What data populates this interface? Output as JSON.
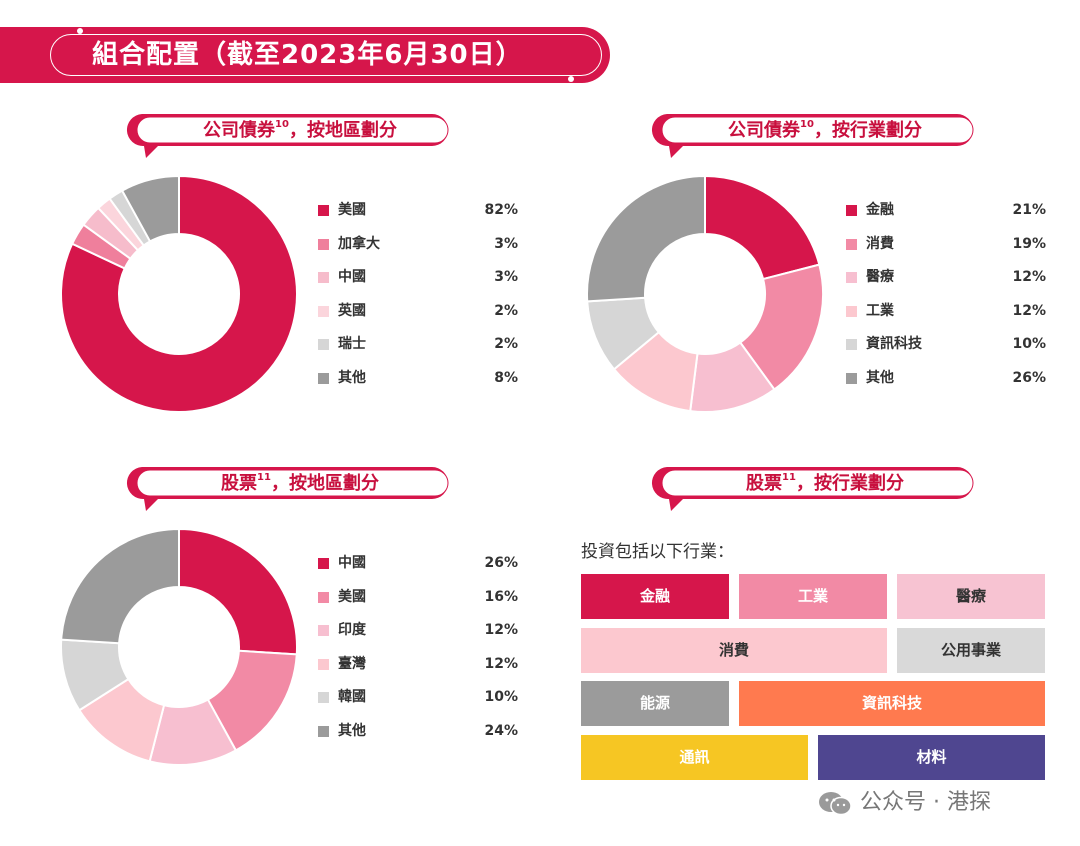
{
  "header": {
    "title": "組合配置（截至2023年6月30日）"
  },
  "sections": {
    "bond_region": {
      "title": "公司債券",
      "sup": "10",
      "suffix": "，按地區劃分"
    },
    "bond_industry": {
      "title": "公司債券",
      "sup": "10",
      "suffix": "，按行業劃分"
    },
    "equity_region": {
      "title": "股票",
      "sup": "11",
      "suffix": "，按地區劃分"
    },
    "equity_industry": {
      "title": "股票",
      "sup": "11",
      "suffix": "，按行業劃分"
    }
  },
  "chart_data": [
    {
      "type": "pie",
      "title": "公司債券，按地區劃分",
      "categories": [
        "美國",
        "加拿大",
        "中國",
        "英國",
        "瑞士",
        "其他"
      ],
      "values": [
        82,
        3,
        3,
        2,
        2,
        8
      ],
      "labels": [
        "82%",
        "3%",
        "3%",
        "2%",
        "2%",
        "8%"
      ],
      "colors": [
        "#d6164b",
        "#ef7f9c",
        "#f6bccb",
        "#fbd5dc",
        "#d6d6d6",
        "#9b9b9b"
      ]
    },
    {
      "type": "pie",
      "title": "公司債券，按行業劃分",
      "categories": [
        "金融",
        "消費",
        "醫療",
        "工業",
        "資訊科技",
        "其他"
      ],
      "values": [
        21,
        19,
        12,
        12,
        10,
        26
      ],
      "labels": [
        "21%",
        "19%",
        "12%",
        "12%",
        "10%",
        "26%"
      ],
      "colors": [
        "#d6164b",
        "#f28aa5",
        "#f7bfd0",
        "#fcc8cf",
        "#d6d6d6",
        "#9b9b9b"
      ]
    },
    {
      "type": "pie",
      "title": "股票，按地區劃分",
      "categories": [
        "中國",
        "美國",
        "印度",
        "臺灣",
        "韓國",
        "其他"
      ],
      "values": [
        26,
        16,
        12,
        12,
        10,
        24
      ],
      "labels": [
        "26%",
        "16%",
        "12%",
        "12%",
        "10%",
        "24%"
      ],
      "colors": [
        "#d6164b",
        "#f28aa5",
        "#f7bfd0",
        "#fcc8cf",
        "#d6d6d6",
        "#9b9b9b"
      ]
    }
  ],
  "industry_grid": {
    "title": "投資包括以下行業：",
    "tiles": [
      {
        "label": "金融",
        "color": "#d6164b",
        "text": "#ffffff"
      },
      {
        "label": "工業",
        "color": "#f28aa5",
        "text": "#ffffff"
      },
      {
        "label": "醫療",
        "color": "#f7c3d2",
        "text": "#333333"
      },
      {
        "label": "消費",
        "color": "#fcc8cf",
        "text": "#333333"
      },
      {
        "label": "公用事業",
        "color": "#d9d9d9",
        "text": "#333333"
      },
      {
        "label": "能源",
        "color": "#9b9b9b",
        "text": "#ffffff"
      },
      {
        "label": "資訊科技",
        "color": "#ff7a4f",
        "text": "#ffffff"
      },
      {
        "label": "通訊",
        "color": "#f6c623",
        "text": "#ffffff"
      },
      {
        "label": "材料",
        "color": "#4f4690",
        "text": "#ffffff"
      }
    ]
  },
  "watermark": {
    "text": "公众号 · 港探",
    "icon": "wechat-icon"
  },
  "colors": {
    "brand": "#d6164b"
  }
}
